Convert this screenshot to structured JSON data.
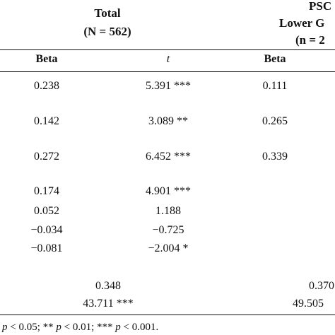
{
  "header": {
    "group_total": {
      "title": "Total",
      "subtitle": "(N = 562)"
    },
    "group_psc": {
      "title": "PSC",
      "line2": "Lower G",
      "line3": "(n = 2"
    }
  },
  "columns": {
    "beta": "Beta",
    "t": "t",
    "beta2": "Beta"
  },
  "rows": [
    {
      "beta": "0.238",
      "t": "5.391 ***",
      "beta2": "0.111"
    },
    {
      "beta": "0.142",
      "t": "3.089 **",
      "beta2": "0.265"
    },
    {
      "beta": "0.272",
      "t": "6.452 ***",
      "beta2": "0.339"
    },
    {
      "beta": "0.174",
      "t": "4.901 ***",
      "beta2": ""
    },
    {
      "beta": "0.052",
      "t": "1.188",
      "beta2": ""
    },
    {
      "beta": "−0.034",
      "t": "−0.725",
      "beta2": ""
    },
    {
      "beta": "−0.081",
      "t": "−2.004 *",
      "beta2": ""
    }
  ],
  "summary": {
    "r2_total": "0.348",
    "f_total": "43.711 ***",
    "r2_psc": "0.370",
    "f_psc": "49.505"
  },
  "footnote": {
    "p1": "p",
    "s1": " < 0.05; ** ",
    "p2": "p",
    "s2": " < 0.01; *** ",
    "p3": "p",
    "s3": " < 0.001."
  }
}
